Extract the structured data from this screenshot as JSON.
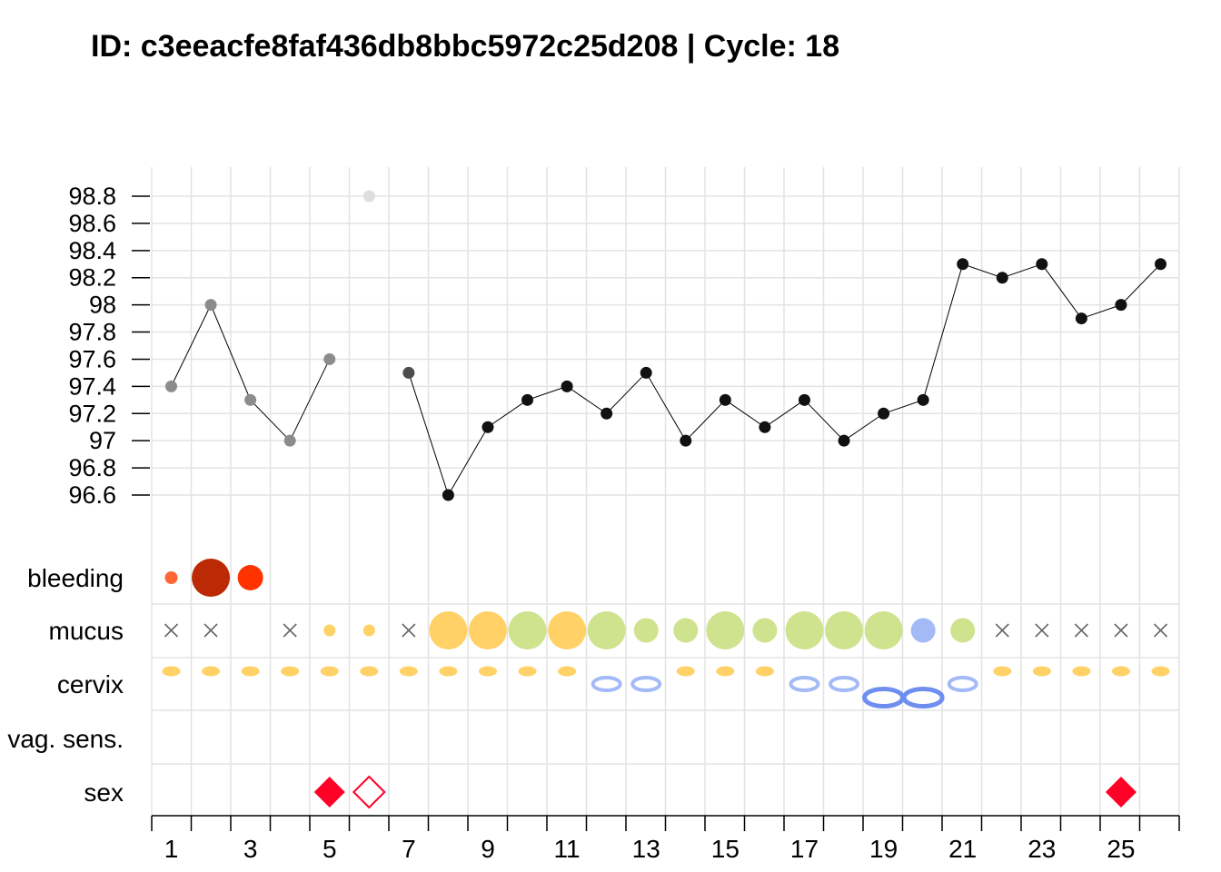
{
  "chart_data": {
    "type": "scatter",
    "title": "ID: c3eeacfe8faf436db8bbc5972c25d208 | Cycle: 18",
    "x_ticks": [
      "1",
      "3",
      "5",
      "7",
      "9",
      "11",
      "13",
      "15",
      "17",
      "19",
      "21",
      "23",
      "25"
    ],
    "days": [
      1,
      2,
      3,
      4,
      5,
      6,
      7,
      8,
      9,
      10,
      11,
      12,
      13,
      14,
      15,
      16,
      17,
      18,
      19,
      20,
      21,
      22,
      23,
      24,
      25,
      26
    ],
    "temperature": {
      "ylim": [
        96.6,
        98.8
      ],
      "y_ticks": [
        "98.8",
        "98.6",
        "98.4",
        "98.2",
        "98",
        "97.8",
        "97.6",
        "97.4",
        "97.2",
        "97",
        "96.8",
        "96.6"
      ],
      "points": [
        {
          "day": 1,
          "value": 97.4,
          "color": "#8c8c8c"
        },
        {
          "day": 2,
          "value": 98.0,
          "color": "#8c8c8c"
        },
        {
          "day": 3,
          "value": 97.3,
          "color": "#8c8c8c"
        },
        {
          "day": 4,
          "value": 97.0,
          "color": "#8c8c8c"
        },
        {
          "day": 5,
          "value": 97.6,
          "color": "#8c8c8c"
        },
        {
          "day": 6,
          "value": 98.8,
          "color": "#dedede"
        },
        {
          "day": 7,
          "value": 97.5,
          "color": "#4d4d4d"
        },
        {
          "day": 8,
          "value": 96.6,
          "color": "#111111"
        },
        {
          "day": 9,
          "value": 97.1,
          "color": "#111111"
        },
        {
          "day": 10,
          "value": 97.3,
          "color": "#111111"
        },
        {
          "day": 11,
          "value": 97.4,
          "color": "#111111"
        },
        {
          "day": 12,
          "value": 97.2,
          "color": "#111111"
        },
        {
          "day": 13,
          "value": 97.5,
          "color": "#111111"
        },
        {
          "day": 14,
          "value": 97.0,
          "color": "#111111"
        },
        {
          "day": 15,
          "value": 97.3,
          "color": "#111111"
        },
        {
          "day": 16,
          "value": 97.1,
          "color": "#111111"
        },
        {
          "day": 17,
          "value": 97.3,
          "color": "#111111"
        },
        {
          "day": 18,
          "value": 97.0,
          "color": "#111111"
        },
        {
          "day": 19,
          "value": 97.2,
          "color": "#111111"
        },
        {
          "day": 20,
          "value": 97.3,
          "color": "#111111"
        },
        {
          "day": 21,
          "value": 98.3,
          "color": "#111111"
        },
        {
          "day": 22,
          "value": 98.2,
          "color": "#111111"
        },
        {
          "day": 23,
          "value": 98.3,
          "color": "#111111"
        },
        {
          "day": 24,
          "value": 97.9,
          "color": "#111111"
        },
        {
          "day": 25,
          "value": 98.0,
          "color": "#111111"
        },
        {
          "day": 26,
          "value": 98.3,
          "color": "#111111"
        }
      ],
      "line_segments": [
        [
          1,
          5
        ],
        [
          7,
          26
        ]
      ]
    },
    "rows": [
      {
        "label": "bleeding",
        "key": "bleeding"
      },
      {
        "label": "mucus",
        "key": "mucus"
      },
      {
        "label": "cervix",
        "key": "cervix"
      },
      {
        "label": "vag. sens.",
        "key": "vag_sens"
      },
      {
        "label": "sex",
        "key": "sex"
      }
    ],
    "bleeding": [
      {
        "day": 1,
        "level": 1,
        "color": "#ff6633"
      },
      {
        "day": 2,
        "level": 3,
        "color": "#bb2a05"
      },
      {
        "day": 3,
        "level": 2,
        "color": "#ff3300"
      }
    ],
    "mucus": [
      {
        "day": 1,
        "kind": "none"
      },
      {
        "day": 2,
        "kind": "none"
      },
      {
        "day": 4,
        "kind": "none"
      },
      {
        "day": 5,
        "kind": "dot",
        "level": 1,
        "color": "#ffd166"
      },
      {
        "day": 6,
        "kind": "dot",
        "level": 1,
        "color": "#ffd166"
      },
      {
        "day": 7,
        "kind": "none"
      },
      {
        "day": 8,
        "kind": "dot",
        "level": 4,
        "color": "#ffd166"
      },
      {
        "day": 9,
        "kind": "dot",
        "level": 4,
        "color": "#ffd166"
      },
      {
        "day": 10,
        "kind": "dot",
        "level": 4,
        "color": "#cfe28d"
      },
      {
        "day": 11,
        "kind": "dot",
        "level": 4,
        "color": "#ffd166"
      },
      {
        "day": 12,
        "kind": "dot",
        "level": 4,
        "color": "#cfe28d"
      },
      {
        "day": 13,
        "kind": "dot",
        "level": 2,
        "color": "#cfe28d"
      },
      {
        "day": 14,
        "kind": "dot",
        "level": 2,
        "color": "#cfe28d"
      },
      {
        "day": 15,
        "kind": "dot",
        "level": 4,
        "color": "#cfe28d"
      },
      {
        "day": 16,
        "kind": "dot",
        "level": 2,
        "color": "#cfe28d"
      },
      {
        "day": 17,
        "kind": "dot",
        "level": 4,
        "color": "#cfe28d"
      },
      {
        "day": 18,
        "kind": "dot",
        "level": 4,
        "color": "#cfe28d"
      },
      {
        "day": 19,
        "kind": "dot",
        "level": 4,
        "color": "#cfe28d"
      },
      {
        "day": 20,
        "kind": "dot",
        "level": 2,
        "color": "#a3baf7"
      },
      {
        "day": 21,
        "kind": "dot",
        "level": 2,
        "color": "#cfe28d"
      },
      {
        "day": 22,
        "kind": "none"
      },
      {
        "day": 23,
        "kind": "none"
      },
      {
        "day": 24,
        "kind": "none"
      },
      {
        "day": 25,
        "kind": "none"
      },
      {
        "day": 26,
        "kind": "none"
      }
    ],
    "cervix": [
      {
        "day": 1,
        "state": "closed"
      },
      {
        "day": 2,
        "state": "closed"
      },
      {
        "day": 3,
        "state": "closed"
      },
      {
        "day": 4,
        "state": "closed"
      },
      {
        "day": 5,
        "state": "closed"
      },
      {
        "day": 6,
        "state": "closed"
      },
      {
        "day": 7,
        "state": "closed"
      },
      {
        "day": 8,
        "state": "closed"
      },
      {
        "day": 9,
        "state": "closed"
      },
      {
        "day": 10,
        "state": "closed"
      },
      {
        "day": 11,
        "state": "closed"
      },
      {
        "day": 12,
        "state": "open"
      },
      {
        "day": 13,
        "state": "open"
      },
      {
        "day": 14,
        "state": "closed"
      },
      {
        "day": 15,
        "state": "closed"
      },
      {
        "day": 16,
        "state": "closed"
      },
      {
        "day": 17,
        "state": "open"
      },
      {
        "day": 18,
        "state": "open"
      },
      {
        "day": 19,
        "state": "wide"
      },
      {
        "day": 20,
        "state": "wide"
      },
      {
        "day": 21,
        "state": "open"
      },
      {
        "day": 22,
        "state": "closed"
      },
      {
        "day": 23,
        "state": "closed"
      },
      {
        "day": 24,
        "state": "closed"
      },
      {
        "day": 25,
        "state": "closed"
      },
      {
        "day": 26,
        "state": "closed"
      }
    ],
    "vag_sens": [],
    "sex": [
      {
        "day": 5,
        "style": "filled",
        "color": "#ff0026"
      },
      {
        "day": 6,
        "style": "outline",
        "color": "#ff0026"
      },
      {
        "day": 25,
        "style": "filled",
        "color": "#ff0026"
      }
    ],
    "colors": {
      "grid": "#e3e3e3",
      "line": "#000000",
      "none_marker": "#666666",
      "cervix_closed": "#ffd166",
      "cervix_open": "#a3baf7",
      "cervix_wide": "#6f8ff0"
    },
    "grid": true
  }
}
